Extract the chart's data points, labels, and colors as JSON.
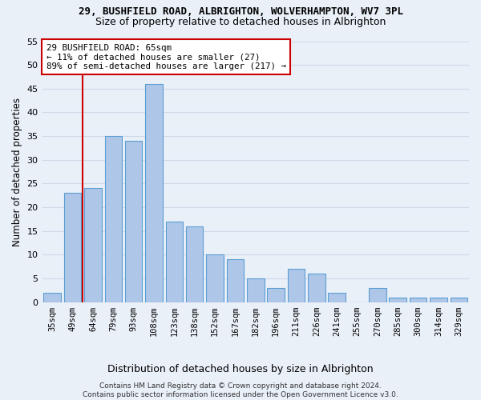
{
  "title1": "29, BUSHFIELD ROAD, ALBRIGHTON, WOLVERHAMPTON, WV7 3PL",
  "title2": "Size of property relative to detached houses in Albrighton",
  "xlabel": "Distribution of detached houses by size in Albrighton",
  "ylabel": "Number of detached properties",
  "footer1": "Contains HM Land Registry data © Crown copyright and database right 2024.",
  "footer2": "Contains public sector information licensed under the Open Government Licence v3.0.",
  "categories": [
    "35sqm",
    "49sqm",
    "64sqm",
    "79sqm",
    "93sqm",
    "108sqm",
    "123sqm",
    "138sqm",
    "152sqm",
    "167sqm",
    "182sqm",
    "196sqm",
    "211sqm",
    "226sqm",
    "241sqm",
    "255sqm",
    "270sqm",
    "285sqm",
    "300sqm",
    "314sqm",
    "329sqm"
  ],
  "values": [
    2,
    23,
    24,
    35,
    34,
    46,
    17,
    16,
    10,
    9,
    5,
    3,
    7,
    6,
    2,
    0,
    3,
    1,
    1,
    1,
    1
  ],
  "bar_color": "#aec6e8",
  "bar_edge_color": "#5a9fd4",
  "grid_color": "#d0d8e8",
  "background_color": "#eaf0f8",
  "vline_x_index": 2,
  "vline_color": "#cc0000",
  "annotation_line1": "29 BUSHFIELD ROAD: 65sqm",
  "annotation_line2": "← 11% of detached houses are smaller (27)",
  "annotation_line3": "89% of semi-detached houses are larger (217) →",
  "annotation_box_color": "#ffffff",
  "annotation_box_edge": "#cc0000",
  "ylim": [
    0,
    55
  ],
  "yticks": [
    0,
    5,
    10,
    15,
    20,
    25,
    30,
    35,
    40,
    45,
    50,
    55
  ]
}
